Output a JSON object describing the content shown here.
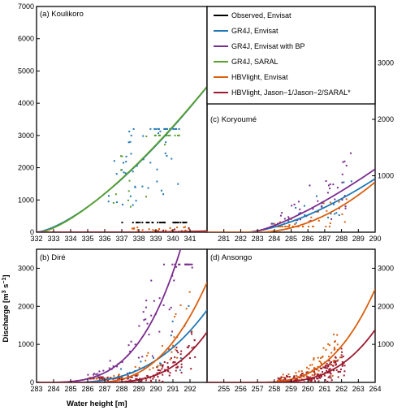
{
  "axes": {
    "xlabel": "Water height [m]",
    "ylabel_main": "Discharge [m",
    "ylabel_sup": "3",
    "ylabel_s": " s",
    "ylabel_sup2": "−1",
    "ylabel_end": "]"
  },
  "legend": [
    {
      "label": "Observed, Envisat",
      "color": "#000000"
    },
    {
      "label": "GR4J, Envisat",
      "color": "#1f77b4"
    },
    {
      "label": "GR4J, Envisat with BP",
      "color": "#7b2d8e"
    },
    {
      "label": "GR4J, SARAL",
      "color": "#5aa02c"
    },
    {
      "label": "HBVlight, Envisat",
      "color": "#d95f0e"
    },
    {
      "label": "HBVlight, Jason−1/Jason−2/SARAL*",
      "color": "#9b1b30"
    }
  ],
  "chart_data": [
    {
      "type": "scatter",
      "title": "(a) Koulikoro",
      "xlim": [
        332,
        342
      ],
      "ylim": [
        0,
        7000
      ],
      "xticks": [
        "332",
        "333",
        "334",
        "335",
        "336",
        "337",
        "338",
        "339",
        "340",
        "341"
      ],
      "yticks": [
        "0",
        "1000",
        "2000",
        "3000",
        "4000",
        "5000",
        "6000",
        "7000"
      ],
      "yaxis_side": "left",
      "series": [
        {
          "color": "#000000",
          "a": 0.9,
          "h0": 336.3,
          "b": 2.1,
          "cloud": [
            337.0,
            340.8,
            300,
            5300
          ],
          "n": 30
        },
        {
          "color": "#1f77b4",
          "a": 160,
          "h0": 332.0,
          "b": 1.45,
          "cloud": [
            336.2,
            340.4,
            300,
            3200
          ],
          "n": 55
        },
        {
          "color": "#5aa02c",
          "a": 185,
          "h0": 332.2,
          "b": 1.4,
          "cloud": [
            336.5,
            340.4,
            400,
            3000
          ],
          "n": 25
        },
        {
          "color": "#d95f0e",
          "a": 1.2,
          "h0": 337.2,
          "b": 2.0,
          "cloud": [
            337.5,
            341.0,
            0,
            5800
          ],
          "n": 45
        },
        {
          "color": "#9b1b30",
          "a": 1.0,
          "h0": 337.6,
          "b": 2.0,
          "cloud": [
            338.0,
            341.0,
            0,
            2500
          ],
          "n": 15
        }
      ]
    },
    {
      "type": "scatter",
      "title": "(c) Koryoumé",
      "xlim": [
        280,
        290
      ],
      "ylim": [
        0,
        4000
      ],
      "xticks": [
        "281",
        "282",
        "283",
        "284",
        "285",
        "286",
        "287",
        "288",
        "289",
        "290"
      ],
      "yticks": [
        "1000",
        "2000",
        "3000"
      ],
      "yaxis_side": "right",
      "series": [
        {
          "color": "#1f77b4",
          "a": 40,
          "h0": 282.3,
          "b": 1.55,
          "cloud": [
            283.8,
            288.6,
            150,
            1800
          ],
          "n": 20
        },
        {
          "color": "#7b2d8e",
          "a": 75,
          "h0": 282.6,
          "b": 1.35,
          "cloud": [
            283.8,
            288.6,
            150,
            2400
          ],
          "n": 45
        },
        {
          "color": "#d95f0e",
          "a": 20,
          "h0": 283.0,
          "b": 1.95,
          "cloud": [
            283.8,
            288.6,
            100,
            2300
          ],
          "n": 40
        }
      ]
    },
    {
      "type": "scatter",
      "title": "(b) Diré",
      "xlim": [
        283,
        293
      ],
      "ylim": [
        0,
        3500
      ],
      "xticks": [
        "283",
        "284",
        "285",
        "286",
        "287",
        "288",
        "289",
        "290",
        "291",
        "292"
      ],
      "yticks": [
        "0",
        "1000",
        "2000",
        "3000"
      ],
      "yaxis_side": "left",
      "series": [
        {
          "color": "#1f77b4",
          "a": 8,
          "h0": 284.8,
          "b": 2.6,
          "cloud": [
            286.5,
            292.3,
            100,
            2500
          ],
          "n": 25
        },
        {
          "color": "#7b2d8e",
          "a": 2,
          "h0": 283.0,
          "b": 3.5,
          "cloud": [
            286.0,
            292.3,
            200,
            3100
          ],
          "n": 60
        },
        {
          "color": "#d95f0e",
          "a": 18,
          "h0": 286.2,
          "b": 2.6,
          "cloud": [
            286.0,
            292.3,
            100,
            3000
          ],
          "n": 60
        },
        {
          "color": "#9b1b30",
          "a": 4,
          "h0": 286.5,
          "b": 3.1,
          "cloud": [
            286.0,
            292.3,
            0,
            2400
          ],
          "n": 150
        }
      ]
    },
    {
      "type": "scatter",
      "title": "(d) Ansongo",
      "xlim": [
        254,
        264
      ],
      "ylim": [
        0,
        3500
      ],
      "xticks": [
        "255",
        "256",
        "257",
        "258",
        "259",
        "260",
        "261",
        "262",
        "263",
        "264"
      ],
      "yticks": [
        "1000",
        "2000",
        "3000"
      ],
      "yaxis_side": "right",
      "series": [
        {
          "color": "#d95f0e",
          "a": 8,
          "h0": 256.8,
          "b": 2.9,
          "cloud": [
            258.2,
            262.0,
            50,
            2700
          ],
          "n": 90
        },
        {
          "color": "#9b1b30",
          "a": 4,
          "h0": 257.2,
          "b": 3.05,
          "cloud": [
            258.2,
            262.2,
            0,
            2600
          ],
          "n": 180
        }
      ]
    }
  ]
}
